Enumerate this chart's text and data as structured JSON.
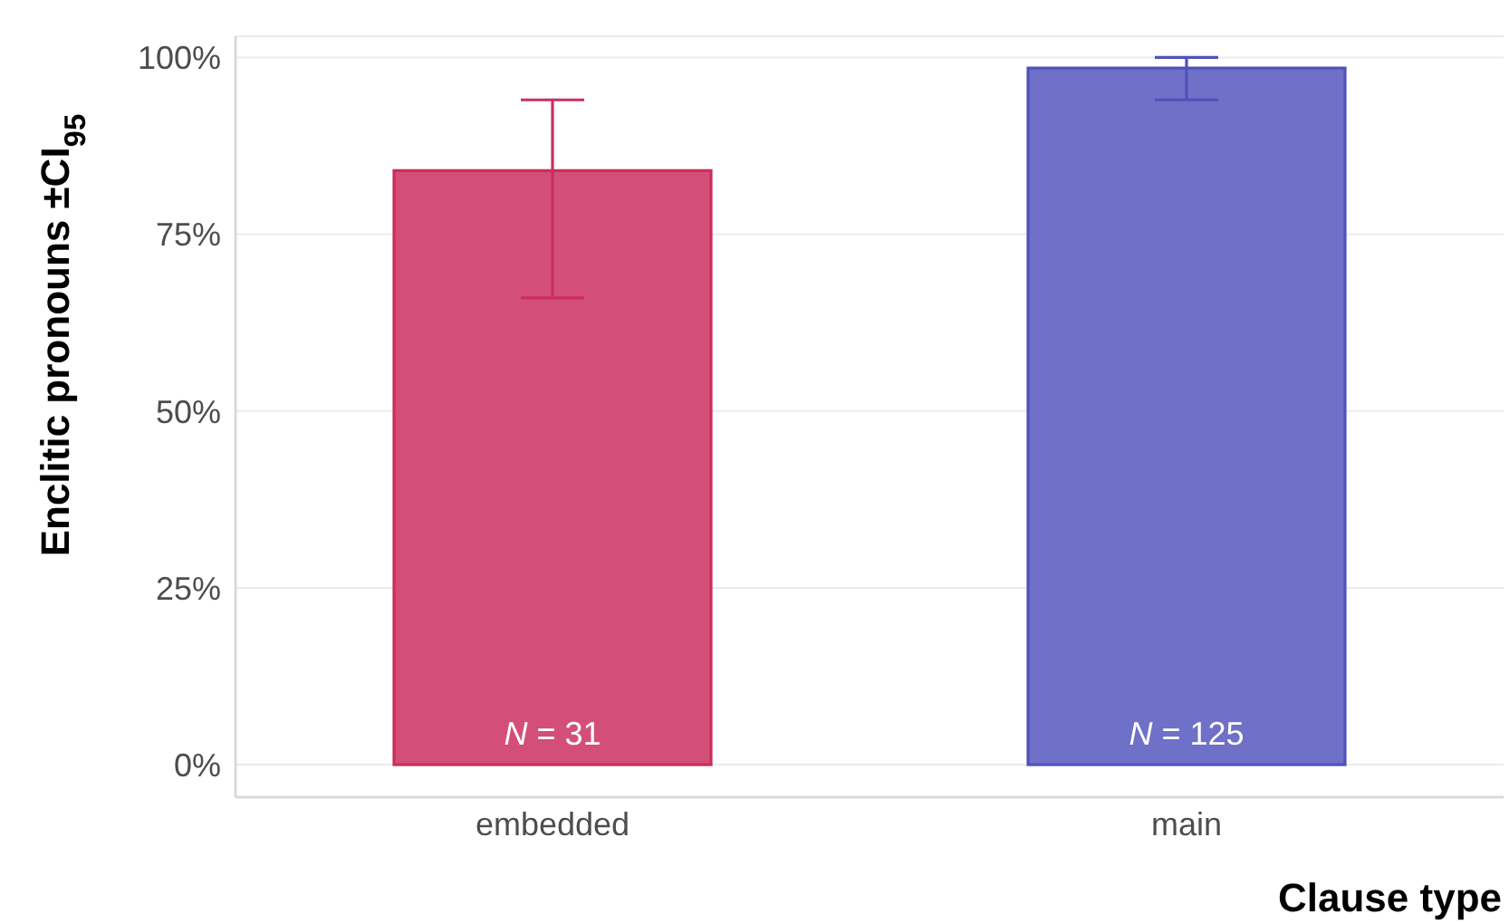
{
  "chart_data": {
    "type": "bar",
    "xlabel": "Clause type",
    "ylabel": "Enclitic pronouns ±CI$_{95}$",
    "categories": [
      "embedded",
      "main"
    ],
    "values": [
      84,
      98.5
    ],
    "colors": [
      "#d34f78",
      "#6f70c8"
    ],
    "errors": [
      [
        66,
        94
      ],
      [
        94,
        100
      ]
    ],
    "ylim": [
      -4.6,
      103
    ],
    "yticks": [
      {
        "value": 0,
        "label": "0%"
      },
      {
        "value": 25,
        "label": "25%"
      },
      {
        "value": 50,
        "label": "50%"
      },
      {
        "value": 75,
        "label": "75%"
      },
      {
        "value": 100,
        "label": "100%"
      }
    ],
    "grid": "y",
    "annotations": [
      "N = 31",
      "N = 125"
    ]
  }
}
